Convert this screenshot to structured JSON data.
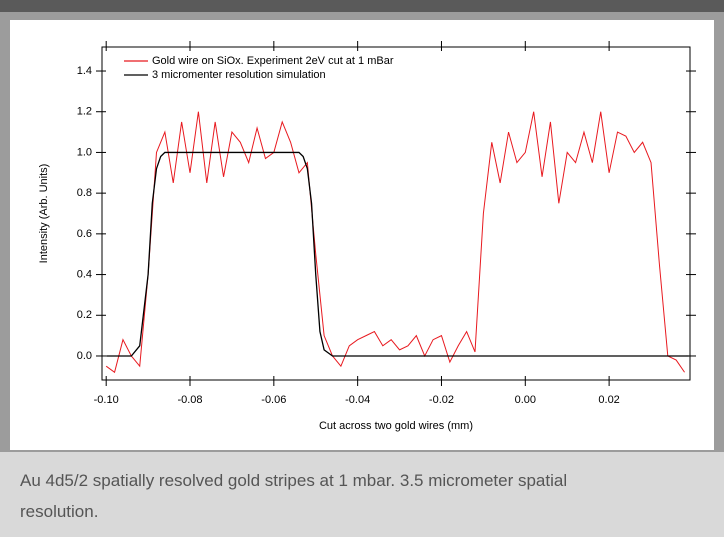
{
  "chart_data": {
    "type": "line",
    "xlabel": "Cut across two gold wires (mm)",
    "ylabel": "Intensity (Arb. Units)",
    "xlim": [
      -0.101,
      0.0393
    ],
    "ylim": [
      -0.118,
      1.518
    ],
    "xticks": [
      {
        "value": -0.1,
        "label": "-0.10"
      },
      -0.08,
      -0.06,
      -0.04,
      -0.02,
      {
        "value": 0,
        "label": "0.00"
      },
      0.02
    ],
    "yticks": [
      {
        "value": 0,
        "label": "0.0"
      },
      0.2,
      0.4,
      0.6,
      0.8,
      {
        "value": 1,
        "label": "1.0"
      },
      1.2,
      1.4
    ],
    "legend": "top-left",
    "series": [
      {
        "name": "Gold wire on SiOx. Experiment 2eV cut at 1 mBar",
        "color": "#e8191f",
        "x": [
          -0.1,
          -0.098,
          -0.096,
          -0.094,
          -0.092,
          -0.09,
          -0.088,
          -0.086,
          -0.084,
          -0.082,
          -0.08,
          -0.078,
          -0.076,
          -0.074,
          -0.072,
          -0.07,
          -0.068,
          -0.066,
          -0.064,
          -0.062,
          -0.06,
          -0.058,
          -0.056,
          -0.054,
          -0.052,
          -0.05,
          -0.048,
          -0.046,
          -0.044,
          -0.042,
          -0.04,
          -0.038,
          -0.036,
          -0.034,
          -0.032,
          -0.03,
          -0.028,
          -0.026,
          -0.024,
          -0.022,
          -0.02,
          -0.018,
          -0.016,
          -0.014,
          -0.012,
          -0.01,
          -0.008,
          -0.006,
          -0.004,
          -0.002,
          0,
          0.002,
          0.004,
          0.006,
          0.008,
          0.01,
          0.012,
          0.014,
          0.016,
          0.018,
          0.02,
          0.022,
          0.024,
          0.026,
          0.028,
          0.03,
          0.032,
          0.034,
          0.036,
          0.038
        ],
        "values": [
          -0.05,
          -0.08,
          0.08,
          0.0,
          -0.05,
          0.4,
          1.0,
          1.1,
          0.85,
          1.15,
          0.9,
          1.2,
          0.85,
          1.15,
          0.88,
          1.1,
          1.05,
          0.95,
          1.12,
          0.97,
          1.0,
          1.15,
          1.05,
          0.9,
          0.95,
          0.5,
          0.1,
          0.0,
          -0.05,
          0.05,
          0.08,
          0.1,
          0.12,
          0.05,
          0.08,
          0.03,
          0.05,
          0.1,
          0.0,
          0.08,
          0.1,
          -0.03,
          0.05,
          0.12,
          0.02,
          0.7,
          1.05,
          0.85,
          1.1,
          0.95,
          1.0,
          1.2,
          0.88,
          1.15,
          0.75,
          1.0,
          0.95,
          1.1,
          0.95,
          1.2,
          0.9,
          1.1,
          1.08,
          1.0,
          1.05,
          0.95,
          0.45,
          0.0,
          -0.02,
          -0.08
        ]
      },
      {
        "name": "3 micromenter resolution simulation",
        "color": "#000000",
        "x": [
          -0.1,
          -0.094,
          -0.092,
          -0.09,
          -0.089,
          -0.088,
          -0.087,
          -0.086,
          -0.054,
          -0.053,
          -0.052,
          -0.051,
          -0.05,
          -0.049,
          -0.048,
          -0.046,
          0.039
        ],
        "values": [
          0,
          0,
          0.05,
          0.4,
          0.75,
          0.92,
          0.98,
          1.0,
          1.0,
          0.98,
          0.92,
          0.75,
          0.4,
          0.12,
          0.03,
          0,
          0
        ]
      }
    ]
  },
  "caption": "Au 4d5/2 spatially resolved gold stripes at 1 mbar. 3.5 micrometer spatial resolution."
}
